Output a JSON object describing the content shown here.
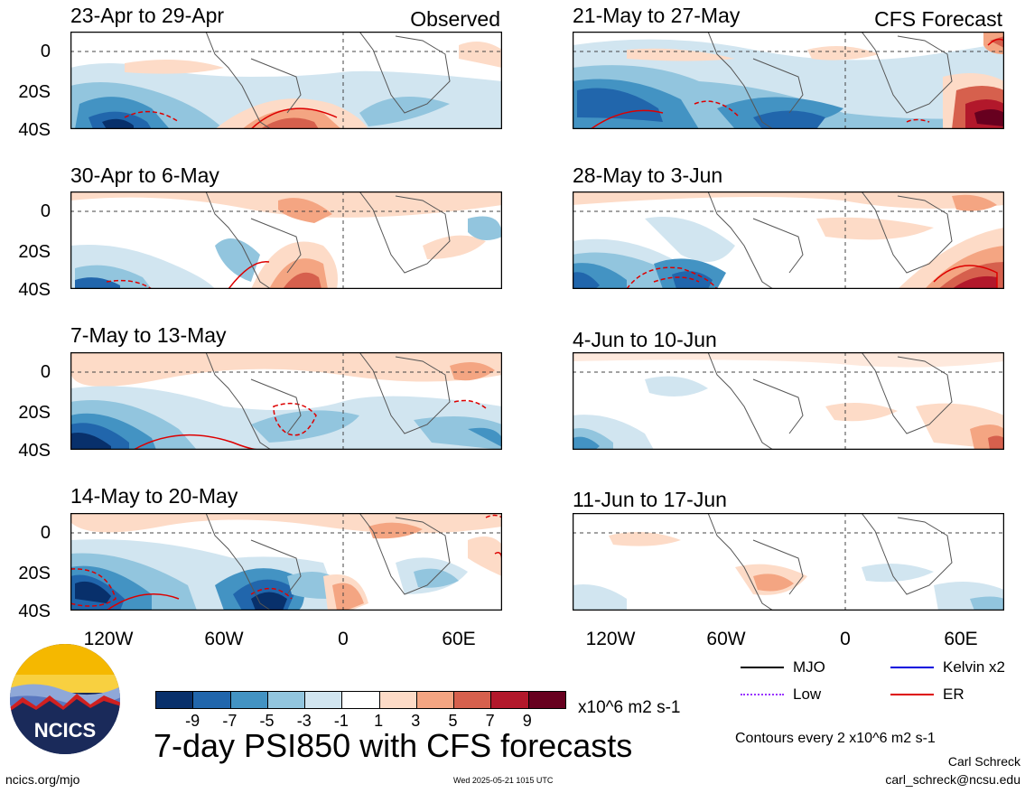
{
  "panels": [
    {
      "title": "23-Apr to 29-Apr",
      "tag": "Observed"
    },
    {
      "title": "30-Apr to 6-May",
      "tag": ""
    },
    {
      "title": "7-May to 13-May",
      "tag": ""
    },
    {
      "title": "14-May to 20-May",
      "tag": ""
    },
    {
      "title": "21-May to 27-May",
      "tag": "CFS Forecast"
    },
    {
      "title": "28-May to 3-Jun",
      "tag": ""
    },
    {
      "title": "4-Jun to 10-Jun",
      "tag": ""
    },
    {
      "title": "11-Jun to 17-Jun",
      "tag": ""
    }
  ],
  "y_ticks": [
    "0",
    "20S",
    "40S"
  ],
  "x_ticks": [
    "120W",
    "60W",
    "0",
    "60E"
  ],
  "colorbar": {
    "colors": [
      "#08306b",
      "#2166ac",
      "#4393c3",
      "#92c5de",
      "#d1e5f0",
      "#ffffff",
      "#fddbc7",
      "#f4a582",
      "#d6604d",
      "#b2182b",
      "#67001f"
    ],
    "labels": [
      "-9",
      "-7",
      "-5",
      "-3",
      "-1",
      "1",
      "3",
      "5",
      "7",
      "9"
    ],
    "units": "x10^6 m2 s-1"
  },
  "legend": [
    {
      "label": "MJO",
      "color": "#000000",
      "style": "solid"
    },
    {
      "label": "Kelvin x2",
      "color": "#0000dd",
      "style": "solid"
    },
    {
      "label": "Low",
      "color": "#9933ff",
      "style": "dotted"
    },
    {
      "label": "ER",
      "color": "#dd0000",
      "style": "solid"
    }
  ],
  "logo_text": "NCICS",
  "main_title": "7-day PSI850 with CFS forecasts",
  "contours_note": "Contours every 2 x10^6 m2 s-1",
  "author": "Carl Schreck",
  "email": "carl_schreck@ncsu.edu",
  "website": "ncics.org/mjo",
  "timestamp": "Wed 2025-05-21 1015 UTC"
}
